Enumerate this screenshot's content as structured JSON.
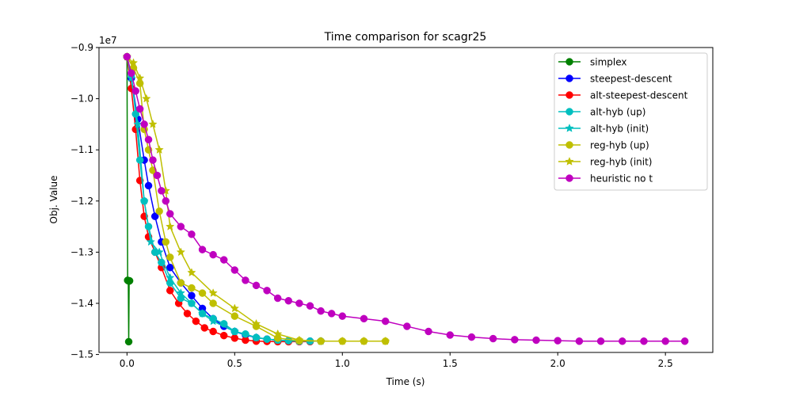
{
  "chart_data": {
    "type": "line",
    "title": "Time comparison for scagr25",
    "xlabel": "Time (s)",
    "ylabel": "Obj. Value",
    "y_offset_label": "1e7",
    "xlim": [
      -0.13,
      2.72
    ],
    "ylim": [
      -1.496,
      -0.9
    ],
    "x_ticks": [
      0.0,
      0.5,
      1.0,
      1.5,
      2.0,
      2.5
    ],
    "x_tick_labels": [
      "0.0",
      "0.5",
      "1.0",
      "1.5",
      "2.0",
      "2.5"
    ],
    "y_ticks": [
      -0.9,
      -1.0,
      -1.1,
      -1.2,
      -1.3,
      -1.4,
      -1.5
    ],
    "y_tick_labels": [
      "−0.9",
      "−1.0",
      "−1.1",
      "−1.2",
      "−1.3",
      "−1.4",
      "−1.5"
    ],
    "grid": false,
    "legend_position": "top-right",
    "series": [
      {
        "name": "simplex",
        "color": "#008000",
        "marker": "circle",
        "x": [
          0.0,
          0.003,
          0.006,
          0.008,
          0.01,
          0.012
        ],
        "y": [
          -0.918,
          -1.355,
          -1.356,
          -1.475,
          -1.3565,
          -1.356
        ]
      },
      {
        "name": "steepest-descent",
        "color": "#0000ff",
        "marker": "circle",
        "x": [
          0.0,
          0.02,
          0.05,
          0.08,
          0.1,
          0.13,
          0.16,
          0.2,
          0.25,
          0.3,
          0.35,
          0.4,
          0.45,
          0.5,
          0.55,
          0.6,
          0.65,
          0.7,
          0.75,
          0.8,
          0.85,
          0.9
        ],
        "y": [
          -0.918,
          -0.96,
          -1.04,
          -1.12,
          -1.17,
          -1.23,
          -1.28,
          -1.33,
          -1.36,
          -1.385,
          -1.41,
          -1.43,
          -1.445,
          -1.455,
          -1.462,
          -1.467,
          -1.47,
          -1.472,
          -1.473,
          -1.4735,
          -1.474,
          -1.474
        ]
      },
      {
        "name": "alt-steepest-descent",
        "color": "#ff0000",
        "marker": "circle",
        "x": [
          0.0,
          0.02,
          0.04,
          0.06,
          0.08,
          0.1,
          0.13,
          0.16,
          0.2,
          0.24,
          0.28,
          0.32,
          0.36,
          0.4,
          0.45,
          0.5,
          0.55,
          0.6,
          0.65,
          0.7,
          0.75,
          0.8,
          0.85
        ],
        "y": [
          -0.918,
          -0.98,
          -1.06,
          -1.16,
          -1.23,
          -1.27,
          -1.3,
          -1.33,
          -1.375,
          -1.4,
          -1.42,
          -1.435,
          -1.448,
          -1.455,
          -1.463,
          -1.468,
          -1.472,
          -1.474,
          -1.4745,
          -1.475,
          -1.475,
          -1.475,
          -1.475
        ]
      },
      {
        "name": "alt-hyb (up)",
        "color": "#00bfbf",
        "marker": "circle",
        "x": [
          0.0,
          0.02,
          0.04,
          0.06,
          0.08,
          0.1,
          0.13,
          0.16,
          0.2,
          0.25,
          0.3,
          0.35,
          0.4,
          0.45,
          0.5,
          0.55,
          0.6,
          0.65,
          0.7,
          0.75,
          0.8,
          0.85,
          0.9
        ],
        "y": [
          -0.918,
          -0.952,
          -1.03,
          -1.12,
          -1.2,
          -1.25,
          -1.3,
          -1.32,
          -1.36,
          -1.39,
          -1.4,
          -1.42,
          -1.43,
          -1.44,
          -1.455,
          -1.46,
          -1.467,
          -1.47,
          -1.472,
          -1.473,
          -1.474,
          -1.474,
          -1.474
        ]
      },
      {
        "name": "alt-hyb (init)",
        "color": "#00bfbf",
        "marker": "star",
        "x": [
          0.0,
          0.02,
          0.05,
          0.08,
          0.11,
          0.15,
          0.2,
          0.25,
          0.3,
          0.35,
          0.4,
          0.5,
          0.6,
          0.7,
          0.8,
          0.9
        ],
        "y": [
          -0.918,
          -0.96,
          -1.05,
          -1.2,
          -1.28,
          -1.3,
          -1.35,
          -1.38,
          -1.4,
          -1.42,
          -1.435,
          -1.455,
          -1.467,
          -1.472,
          -1.474,
          -1.474
        ]
      },
      {
        "name": "reg-hyb (up)",
        "color": "#bfbf00",
        "marker": "circle",
        "x": [
          0.0,
          0.03,
          0.06,
          0.08,
          0.1,
          0.12,
          0.15,
          0.18,
          0.2,
          0.25,
          0.3,
          0.35,
          0.4,
          0.5,
          0.6,
          0.7,
          0.8,
          0.9,
          1.0,
          1.1,
          1.2
        ],
        "y": [
          -0.918,
          -0.94,
          -0.97,
          -1.06,
          -1.1,
          -1.14,
          -1.22,
          -1.28,
          -1.31,
          -1.36,
          -1.37,
          -1.38,
          -1.4,
          -1.425,
          -1.445,
          -1.468,
          -1.473,
          -1.474,
          -1.474,
          -1.474,
          -1.474
        ]
      },
      {
        "name": "reg-hyb (init)",
        "color": "#bfbf00",
        "marker": "star",
        "x": [
          0.0,
          0.03,
          0.06,
          0.09,
          0.12,
          0.15,
          0.18,
          0.2,
          0.25,
          0.3,
          0.4,
          0.5,
          0.6,
          0.7,
          0.8,
          0.9,
          1.0,
          1.1,
          1.2
        ],
        "y": [
          -0.918,
          -0.93,
          -0.96,
          -1.0,
          -1.05,
          -1.1,
          -1.18,
          -1.25,
          -1.3,
          -1.34,
          -1.38,
          -1.41,
          -1.44,
          -1.46,
          -1.472,
          -1.474,
          -1.474,
          -1.474,
          -1.474
        ]
      },
      {
        "name": "heuristic no t",
        "color": "#bf00bf",
        "marker": "circle",
        "x": [
          0.0,
          0.02,
          0.04,
          0.06,
          0.08,
          0.1,
          0.12,
          0.14,
          0.16,
          0.18,
          0.2,
          0.25,
          0.3,
          0.35,
          0.4,
          0.45,
          0.5,
          0.55,
          0.6,
          0.65,
          0.7,
          0.75,
          0.8,
          0.85,
          0.9,
          0.95,
          1.0,
          1.1,
          1.2,
          1.3,
          1.4,
          1.5,
          1.6,
          1.7,
          1.8,
          1.9,
          2.0,
          2.1,
          2.2,
          2.3,
          2.4,
          2.5,
          2.59
        ],
        "y": [
          -0.918,
          -0.95,
          -0.985,
          -1.02,
          -1.05,
          -1.08,
          -1.12,
          -1.15,
          -1.18,
          -1.2,
          -1.225,
          -1.25,
          -1.265,
          -1.295,
          -1.305,
          -1.315,
          -1.335,
          -1.355,
          -1.365,
          -1.375,
          -1.39,
          -1.395,
          -1.4,
          -1.405,
          -1.415,
          -1.42,
          -1.425,
          -1.43,
          -1.435,
          -1.445,
          -1.455,
          -1.462,
          -1.466,
          -1.469,
          -1.471,
          -1.472,
          -1.473,
          -1.474,
          -1.474,
          -1.474,
          -1.474,
          -1.474,
          -1.474
        ]
      }
    ]
  }
}
